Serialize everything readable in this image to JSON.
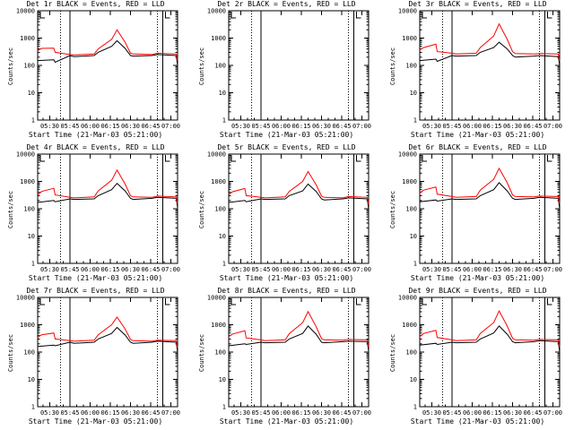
{
  "chart_data": {
    "type": "line",
    "title_template": "{det} BLACK = Events, RED = LLD",
    "xlabel": "Start Time (21-Mar-03 05:21:00)",
    "ylabel": "Counts/sec",
    "yscale": "log",
    "ylim": [
      1,
      10000
    ],
    "y_ticks": [
      1,
      10,
      100,
      1000,
      10000
    ],
    "y_tick_labels": [
      "1",
      "10",
      "100",
      "1000",
      "10000"
    ],
    "x_start_min": 321,
    "x_end_min": 425,
    "x_ticks": [
      330,
      345,
      360,
      375,
      390,
      405,
      420
    ],
    "x_tick_labels": [
      "05:30",
      "05:45",
      "06:00",
      "06:15",
      "06:30",
      "06:45",
      "07:00"
    ],
    "series_colors": {
      "events": "#000000",
      "lld": "#ff0000"
    },
    "panels": [
      {
        "det": "Det 1r",
        "series": [
          {
            "key": "events",
            "x": [
              321,
              333,
              334,
              345,
              348,
              363,
              366,
              376,
              380,
              386,
              390,
              392,
              406,
              410,
              424,
              425
            ],
            "values": [
              150,
              160,
              130,
              230,
              210,
              230,
              300,
              500,
              800,
              420,
              230,
              220,
              230,
              250,
              230,
              100
            ]
          },
          {
            "key": "lld",
            "x": [
              321,
              324,
              333,
              334,
              345,
              348,
              363,
              366,
              376,
              380,
              386,
              390,
              392,
              406,
              410,
              424,
              425
            ],
            "values": [
              350,
              420,
              430,
              300,
              250,
              240,
              260,
              400,
              900,
              2000,
              700,
              280,
              260,
              250,
              280,
              260,
              150
            ]
          }
        ],
        "solid_lines": [
          345,
          414
        ],
        "dotted_lines": [
          338,
          410
        ],
        "markers": []
      },
      {
        "det": "Det 2r",
        "series": [],
        "solid_lines": [
          345,
          414
        ],
        "dotted_lines": [
          338,
          410
        ],
        "markers": []
      },
      {
        "det": "Det 3r",
        "series": [
          {
            "key": "events",
            "x": [
              321,
              333,
              334,
              345,
              348,
              363,
              366,
              376,
              380,
              386,
              390,
              392,
              406,
              410,
              424,
              425
            ],
            "values": [
              150,
              170,
              140,
              230,
              220,
              230,
              300,
              450,
              700,
              400,
              230,
              200,
              220,
              230,
              210,
              100
            ]
          },
          {
            "key": "lld",
            "x": [
              321,
              324,
              333,
              334,
              345,
              348,
              363,
              366,
              376,
              380,
              386,
              390,
              392,
              406,
              410,
              424,
              425
            ],
            "values": [
              370,
              450,
              600,
              320,
              280,
              260,
              280,
              450,
              1200,
              3300,
              900,
              320,
              270,
              260,
              270,
              260,
              140
            ]
          }
        ],
        "solid_lines": [
          345,
          414
        ],
        "dotted_lines": [
          338,
          410
        ],
        "markers": []
      },
      {
        "det": "Det 4r",
        "series": [
          {
            "key": "events",
            "x": [
              321,
              333,
              334,
              345,
              348,
              363,
              366,
              376,
              380,
              386,
              390,
              392,
              406,
              410,
              424,
              425
            ],
            "values": [
              170,
              200,
              180,
              230,
              220,
              230,
              300,
              500,
              850,
              450,
              240,
              220,
              240,
              260,
              240,
              110
            ]
          },
          {
            "key": "lld",
            "x": [
              321,
              324,
              333,
              334,
              345,
              348,
              363,
              366,
              376,
              380,
              386,
              390,
              392,
              406,
              410,
              424,
              425
            ],
            "values": [
              320,
              430,
              560,
              320,
              260,
              250,
              270,
              450,
              1100,
              2600,
              800,
              300,
              270,
              260,
              290,
              270,
              150
            ]
          }
        ],
        "solid_lines": [
          345,
          414
        ],
        "dotted_lines": [
          338,
          410
        ],
        "markers": []
      },
      {
        "det": "Det 5r",
        "series": [
          {
            "key": "events",
            "x": [
              321,
              333,
              334,
              345,
              348,
              363,
              366,
              376,
              380,
              386,
              390,
              392,
              406,
              410,
              424,
              425
            ],
            "values": [
              170,
              200,
              180,
              230,
              220,
              230,
              300,
              450,
              800,
              430,
              230,
              210,
              230,
              250,
              230,
              100
            ]
          },
          {
            "key": "lld",
            "x": [
              321,
              324,
              333,
              334,
              345,
              348,
              363,
              366,
              376,
              380,
              386,
              390,
              392,
              406,
              410,
              424,
              425
            ],
            "values": [
              330,
              420,
              550,
              300,
              260,
              250,
              270,
              430,
              1000,
              2300,
              750,
              290,
              260,
              250,
              280,
              260,
              140
            ]
          }
        ],
        "solid_lines": [
          345,
          414
        ],
        "dotted_lines": [
          338,
          410
        ],
        "markers": []
      },
      {
        "det": "Det 6r",
        "series": [
          {
            "key": "events",
            "x": [
              321,
              333,
              334,
              345,
              348,
              363,
              366,
              376,
              380,
              386,
              390,
              392,
              406,
              410,
              424,
              425
            ],
            "values": [
              180,
              210,
              190,
              230,
              220,
              230,
              300,
              500,
              900,
              450,
              240,
              220,
              240,
              260,
              240,
              100
            ]
          },
          {
            "key": "lld",
            "x": [
              321,
              324,
              333,
              334,
              345,
              348,
              363,
              366,
              376,
              380,
              386,
              390,
              392,
              406,
              410,
              424,
              425
            ],
            "values": [
              380,
              480,
              620,
              340,
              280,
              260,
              280,
              480,
              1200,
              3000,
              900,
              320,
              280,
              270,
              290,
              280,
              150
            ]
          }
        ],
        "solid_lines": [
          345,
          414
        ],
        "dotted_lines": [
          338,
          410
        ],
        "markers": []
      },
      {
        "det": "Det 7r",
        "series": [
          {
            "key": "events",
            "x": [
              321,
              333,
              334,
              345,
              348,
              363,
              366,
              376,
              380,
              386,
              390,
              392,
              406,
              410,
              424,
              425
            ],
            "values": [
              160,
              180,
              170,
              230,
              210,
              230,
              300,
              480,
              800,
              420,
              230,
              210,
              230,
              250,
              230,
              100
            ]
          },
          {
            "key": "lld",
            "x": [
              321,
              324,
              333,
              334,
              345,
              348,
              363,
              366,
              376,
              380,
              386,
              390,
              392,
              406,
              410,
              424,
              425
            ],
            "values": [
              350,
              430,
              500,
              300,
              260,
              250,
              270,
              430,
              1000,
              1900,
              700,
              290,
              260,
              250,
              270,
              260,
              140
            ]
          }
        ],
        "solid_lines": [
          345,
          414
        ],
        "dotted_lines": [
          338,
          410
        ],
        "markers": []
      },
      {
        "det": "Det 8r",
        "series": [
          {
            "key": "events",
            "x": [
              321,
              333,
              334,
              345,
              348,
              363,
              366,
              376,
              380,
              386,
              390,
              392,
              406,
              410,
              424,
              425
            ],
            "values": [
              170,
              200,
              190,
              230,
              220,
              230,
              300,
              480,
              900,
              450,
              230,
              220,
              240,
              250,
              240,
              110
            ]
          },
          {
            "key": "lld",
            "x": [
              321,
              324,
              333,
              334,
              345,
              348,
              363,
              366,
              376,
              380,
              386,
              390,
              392,
              406,
              410,
              424,
              425
            ],
            "values": [
              370,
              460,
              600,
              330,
              280,
              260,
              280,
              470,
              1200,
              3000,
              850,
              310,
              280,
              270,
              290,
              280,
              150
            ]
          }
        ],
        "solid_lines": [
          345,
          414
        ],
        "dotted_lines": [
          338,
          410
        ],
        "markers": []
      },
      {
        "det": "Det 9r",
        "series": [
          {
            "key": "events",
            "x": [
              321,
              333,
              334,
              345,
              348,
              363,
              366,
              376,
              380,
              386,
              390,
              392,
              406,
              410,
              424,
              425
            ],
            "values": [
              180,
              210,
              190,
              230,
              220,
              230,
              300,
              500,
              900,
              450,
              240,
              220,
              240,
              260,
              240,
              100
            ]
          },
          {
            "key": "lld",
            "x": [
              321,
              324,
              333,
              334,
              345,
              348,
              363,
              366,
              376,
              380,
              386,
              390,
              392,
              406,
              410,
              424,
              425
            ],
            "values": [
              370,
              480,
              620,
              340,
              280,
              260,
              280,
              480,
              1200,
              3200,
              900,
              320,
              280,
              270,
              290,
              280,
              150
            ]
          }
        ],
        "solid_lines": [
          345,
          414
        ],
        "dotted_lines": [
          338,
          410
        ],
        "markers": []
      }
    ]
  }
}
